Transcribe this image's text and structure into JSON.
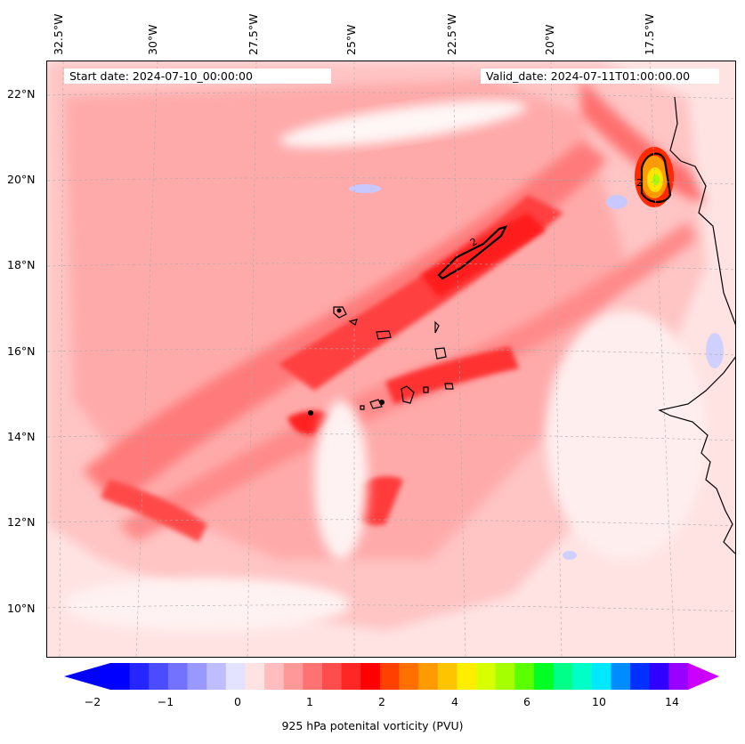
{
  "header": {
    "start_date": "Start date: 2024-07-10_00:00:00",
    "valid_date": "Valid_date: 2024-07-11T01:00:00.00"
  },
  "axes": {
    "longitude_labels": [
      "32.5°W",
      "30°W",
      "27.5°W",
      "25°W",
      "22.5°W",
      "20°W",
      "17.5°W"
    ],
    "latitude_labels": [
      "22°N",
      "20°N",
      "18°N",
      "16°N",
      "14°N",
      "12°N",
      "10°N"
    ]
  },
  "contour_labels": [
    "2",
    "2"
  ],
  "colorbar": {
    "label": "925 hPa potenital vorticity (PVU)",
    "tick_labels": [
      "−2",
      "−1",
      "0",
      "1",
      "2",
      "4",
      "6",
      "10",
      "14"
    ],
    "colors": [
      "#0000ff",
      "#2626ff",
      "#4c4cff",
      "#7272ff",
      "#9898ff",
      "#bdbdff",
      "#e3e3ff",
      "#ffe3e3",
      "#ffbdbd",
      "#ff9898",
      "#ff7272",
      "#ff4c4c",
      "#ff2626",
      "#ff0000",
      "#ff4000",
      "#ff7000",
      "#ff9a00",
      "#ffc400",
      "#ffee00",
      "#d8ff00",
      "#a6ff00",
      "#5aff00",
      "#00ff22",
      "#00ff88",
      "#00ffc8",
      "#00e8ff",
      "#008cff",
      "#0030ff",
      "#3000ff",
      "#9a00ff"
    ],
    "extend_low_color": "#0000ff",
    "extend_high_color": "#cc00ff"
  },
  "colors": {
    "background_pv": "#ffe8e8",
    "accent_red": "#ff1a1a",
    "coastline": "#000000"
  }
}
